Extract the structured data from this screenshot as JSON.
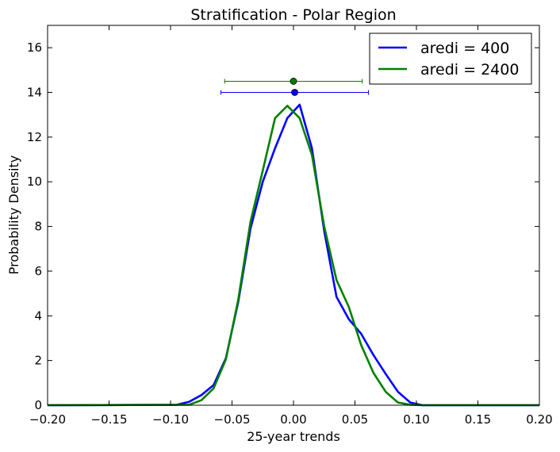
{
  "chart_data": {
    "type": "line",
    "title": "Stratification  - Polar Region",
    "xlabel": "25-year trends",
    "ylabel": "Probability Density",
    "xlim": [
      -0.2,
      0.2
    ],
    "ylim": [
      0,
      17
    ],
    "xticks": [
      -0.2,
      -0.15,
      -0.1,
      -0.05,
      0.0,
      0.05,
      0.1,
      0.15,
      0.2
    ],
    "xtick_labels": [
      "−0.20",
      "−0.15",
      "−0.10",
      "−0.05",
      "0.00",
      "0.05",
      "0.10",
      "0.15",
      "0.20"
    ],
    "yticks": [
      0,
      2,
      4,
      6,
      8,
      10,
      12,
      14,
      16
    ],
    "ytick_labels": [
      "0",
      "2",
      "4",
      "6",
      "8",
      "10",
      "12",
      "14",
      "16"
    ],
    "legend_position": "top-right",
    "grid": false,
    "series": [
      {
        "name": "aredi = 400",
        "color": "#0000ff",
        "x": [
          -0.2,
          -0.095,
          -0.085,
          -0.075,
          -0.065,
          -0.055,
          -0.045,
          -0.035,
          -0.025,
          -0.015,
          -0.005,
          0.005,
          0.015,
          0.025,
          0.035,
          0.045,
          0.055,
          0.065,
          0.075,
          0.085,
          0.095,
          0.105,
          0.2
        ],
        "y": [
          0,
          0.02,
          0.15,
          0.45,
          0.9,
          2.1,
          4.6,
          7.9,
          10.0,
          11.5,
          12.85,
          13.45,
          11.5,
          7.8,
          4.85,
          3.85,
          3.2,
          2.25,
          1.4,
          0.6,
          0.12,
          0.0,
          0
        ]
      },
      {
        "name": "aredi = 2400",
        "color": "#008000",
        "x": [
          -0.2,
          -0.085,
          -0.075,
          -0.065,
          -0.055,
          -0.045,
          -0.035,
          -0.025,
          -0.015,
          -0.005,
          0.005,
          0.015,
          0.025,
          0.035,
          0.045,
          0.055,
          0.065,
          0.075,
          0.085,
          0.095,
          0.105,
          0.2
        ],
        "y": [
          0,
          0.02,
          0.22,
          0.75,
          2.05,
          4.7,
          8.2,
          10.5,
          12.85,
          13.4,
          12.85,
          11.2,
          8.0,
          5.6,
          4.4,
          2.7,
          1.45,
          0.6,
          0.12,
          0.02,
          0.0,
          0
        ]
      }
    ],
    "errorbars": [
      {
        "series": "aredi = 2400",
        "x": 0.0,
        "y": 14.5,
        "xmin": -0.056,
        "xmax": 0.056,
        "color": "#008000"
      },
      {
        "series": "aredi = 400",
        "x": 0.001,
        "y": 14.0,
        "xmin": -0.059,
        "xmax": 0.061,
        "color": "#0000ff"
      }
    ]
  }
}
